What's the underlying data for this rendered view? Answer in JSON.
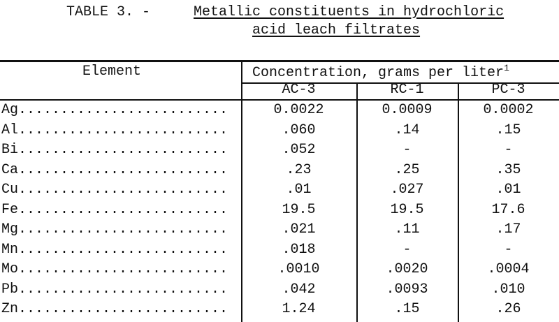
{
  "table": {
    "title": {
      "label": "TABLE 3. -",
      "caption_lines": [
        "Metallic constituents in hydrochloric",
        "acid leach filtrates"
      ]
    },
    "header": {
      "element": "Element",
      "group": "Concentration, grams per liter",
      "footnote_ref": "1",
      "columns": [
        "AC-3",
        "RC-1",
        "PC-3"
      ]
    },
    "rows": [
      [
        "Ag.........................",
        "0.0022",
        "0.0009",
        "0.0002"
      ],
      [
        "Al.........................",
        ".060",
        ".14",
        ".15"
      ],
      [
        "Bi.........................",
        ".052",
        "-",
        "-"
      ],
      [
        "Ca.........................",
        ".23",
        ".25",
        ".35"
      ],
      [
        "Cu.........................",
        ".01",
        ".027",
        ".01"
      ],
      [
        "Fe.........................",
        "19.5",
        "19.5",
        "17.6"
      ],
      [
        "Mg.........................",
        ".021",
        ".11",
        ".17"
      ],
      [
        "Mn.........................",
        ".018",
        "-",
        "-"
      ],
      [
        "Mo.........................",
        ".0010",
        ".0020",
        ".0004"
      ],
      [
        "Pb.........................",
        ".042",
        ".0093",
        ".010"
      ],
      [
        "Zn.........................",
        "1.24",
        ".15",
        ".26"
      ]
    ]
  }
}
